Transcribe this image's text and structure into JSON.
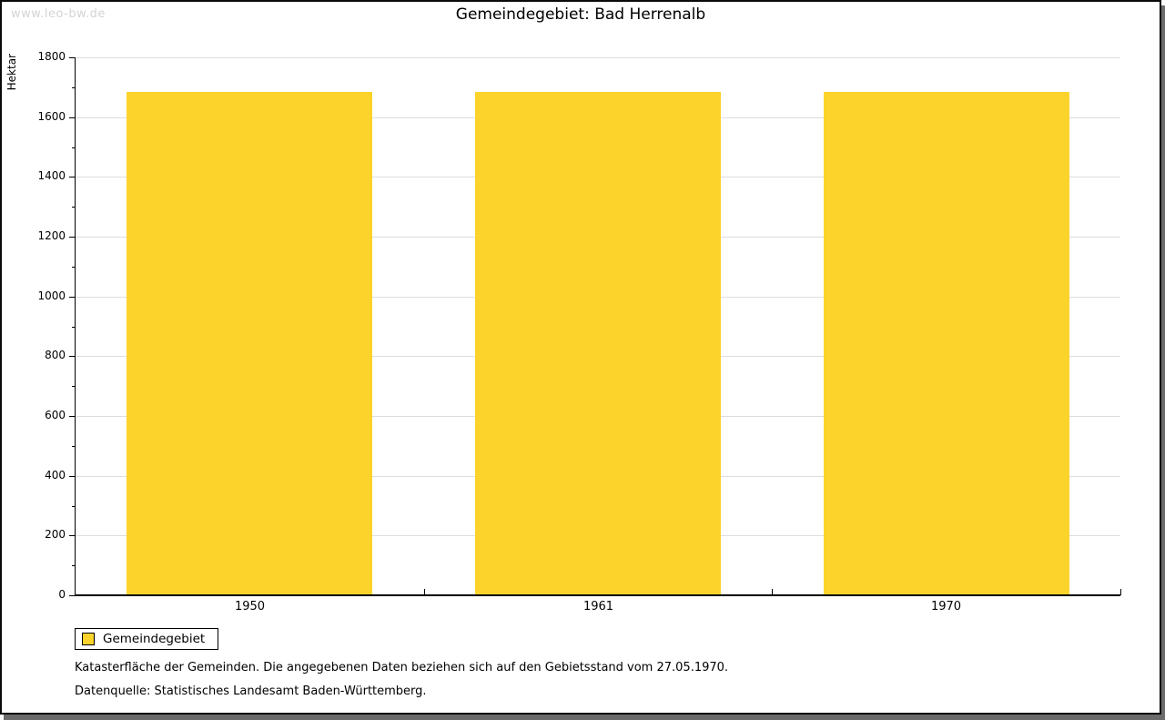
{
  "watermark": "www.leo-bw.de",
  "header": {
    "title": "Gemeindegebiet: Bad Herrenalb"
  },
  "chart_data": {
    "type": "bar",
    "title": "Gemeindegebiet: Bad Herrenalb",
    "categories": [
      "1950",
      "1961",
      "1970"
    ],
    "series": [
      {
        "name": "Gemeindegebiet",
        "values": [
          1685,
          1685,
          1685
        ]
      }
    ],
    "ylabel": "Hektar",
    "xlabel": "",
    "ylim": [
      0,
      1800
    ],
    "ytick_major_step": 200,
    "ytick_minor_step": 100,
    "grid": "horizontal-major",
    "legend_position": "bottom-left"
  },
  "legend": {
    "items": [
      {
        "label": "Gemeindegebiet",
        "color": "#fcd32b"
      }
    ]
  },
  "notes": {
    "line1": "Katasterfläche der Gemeinden. Die angegebenen Daten beziehen sich auf den Gebietsstand vom 27.05.1970.",
    "line2": "Datenquelle: Statistisches Landesamt Baden-Württemberg."
  },
  "colors": {
    "bar": "#fcd32b",
    "grid": "#dddddd",
    "axis": "#000000",
    "watermark": "#d4d4d4",
    "frame_border": "#0a0a0a",
    "frame_shadow": "#6b6b6b",
    "background": "#ffffff"
  }
}
